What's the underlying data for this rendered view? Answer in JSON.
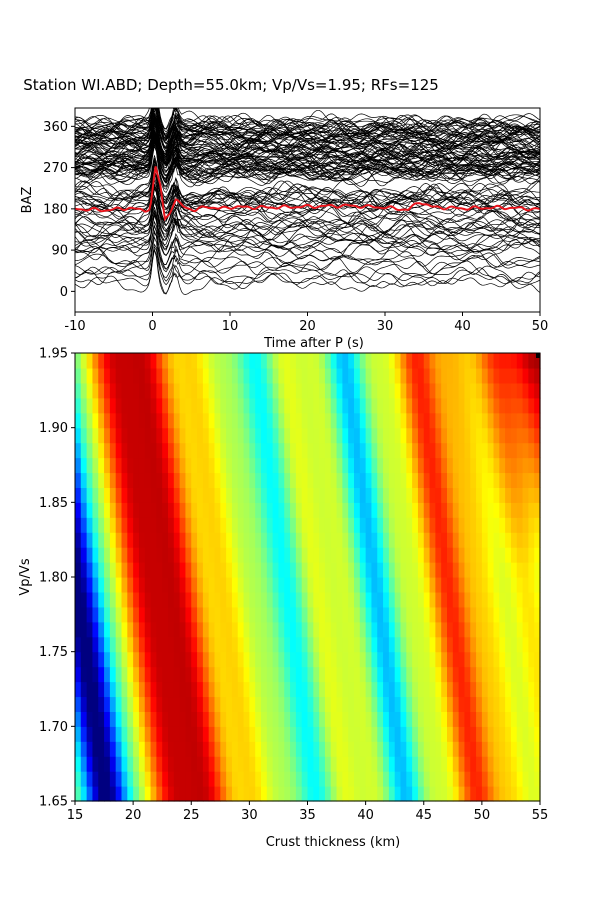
{
  "title": "Station WI.ABD; Depth=55.0km; Vp/Vs=1.95; RFs=125",
  "chart_data": [
    {
      "type": "line",
      "panel": "receiver-functions",
      "xlabel": "Time after P (s)",
      "ylabel": "BAZ",
      "xlim": [
        -10,
        50
      ],
      "ylim": [
        -45,
        400
      ],
      "xticks": [
        -10,
        0,
        10,
        20,
        30,
        40,
        50
      ],
      "yticks": [
        0,
        90,
        180,
        270,
        360
      ],
      "trace_count": 125,
      "trace_color": "#000000",
      "stack_color": "#e8141c",
      "stack_baseline": 180,
      "stack_samples": {
        "t": [
          -10,
          -6,
          -3,
          -1,
          -0.3,
          0.4,
          1.0,
          1.6,
          2.2,
          3.0,
          4.0,
          5.5,
          7.0,
          8.5,
          10,
          15,
          20,
          25,
          30,
          33,
          34.5,
          36,
          40,
          45,
          50
        ],
        "baz": [
          180,
          177,
          182,
          176,
          182,
          270,
          232,
          158,
          172,
          198,
          186,
          176,
          186,
          180,
          184,
          183,
          185,
          187,
          183,
          178,
          196,
          184,
          181,
          183,
          179
        ]
      }
    },
    {
      "type": "heatmap",
      "panel": "h-kappa-stack",
      "xlabel": "Crust thickness (km)",
      "ylabel": "Vp/Vs",
      "xlim": [
        15,
        55
      ],
      "ylim": [
        1.65,
        1.95
      ],
      "xticks": [
        15,
        20,
        25,
        30,
        35,
        40,
        45,
        50,
        55
      ],
      "yticks": [
        "1.65",
        "1.70",
        "1.75",
        "1.80",
        "1.85",
        "1.90",
        "1.95"
      ],
      "colormap": "jet",
      "best_fit": {
        "thickness_km": 55.0,
        "vp_vs": 1.95
      }
    }
  ]
}
